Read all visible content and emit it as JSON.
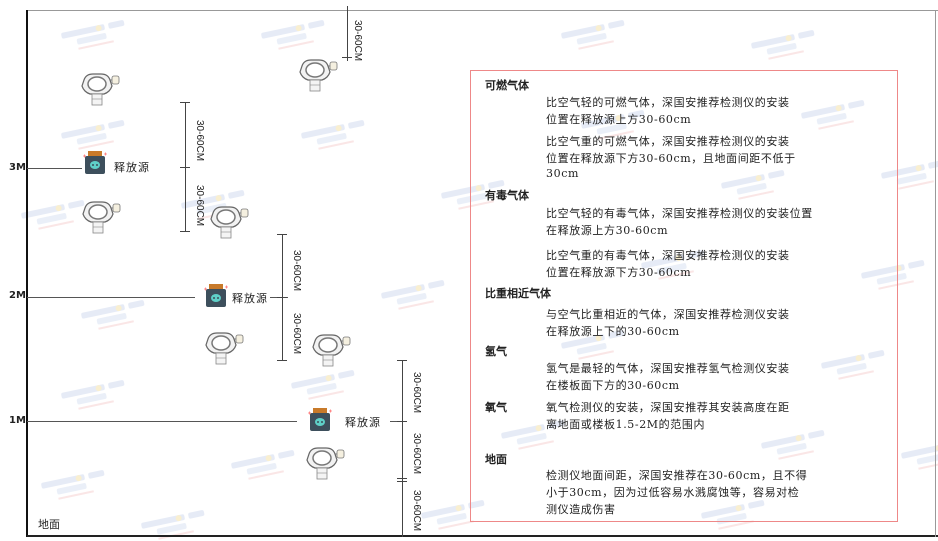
{
  "watermark": {
    "brand": "SINGOAN",
    "cn": "深国安"
  },
  "levels": {
    "l3": "3M",
    "l2": "2M",
    "l1": "1M",
    "ground": "地面"
  },
  "source_label": "释放源",
  "dim_label": "30-60CM",
  "colors": {
    "panel_border": "#e88888",
    "source_body": "#3d4f5c",
    "source_cap": "#c87a2a",
    "source_face": "#5fd0c8"
  },
  "panel": {
    "sections": [
      {
        "title": "可燃气体",
        "paras": [
          [
            "比空气轻的可燃气体，深国安推荐检测仪的安装",
            "位置在释放源上方30-60cm"
          ],
          [
            "比空气重的可燃气体，深国安推荐检测仪的安装",
            "位置在释放源下方30-60cm，且地面间距不低于",
            "30cm"
          ]
        ]
      },
      {
        "title": "有毒气体",
        "paras": [
          [
            "比空气轻的有毒气体，深国安推荐检测仪的安装位置",
            "在释放源上方30-60cm"
          ],
          [
            "比空气重的有毒气体，深国安推荐检测仪的安装",
            "位置在释放源下方30-60cm"
          ]
        ]
      },
      {
        "title": "比重相近气体",
        "paras": [
          [
            "与空气比重相近的气体，深国安推荐检测仪安装",
            "在释放源上下的30-60cm"
          ]
        ]
      },
      {
        "title": "氢气",
        "paras": [
          [
            "氢气是最轻的气体，深国安推荐氢气检测仪安装",
            "在楼板面下方的30-60cm"
          ]
        ]
      },
      {
        "title": "氧气",
        "paras": [
          [
            "氧气检测仪的安装，深国安推荐其安装高度在距",
            "离地面或楼板1.5-2M的范围内"
          ]
        ]
      },
      {
        "title": "地面",
        "paras": [
          [
            "检测仪地面间距，深国安推荐在30-60cm，且不得",
            "小于30cm，因为过低容易水溅腐蚀等，容易对检",
            "测仪造成伤害"
          ]
        ]
      }
    ]
  }
}
